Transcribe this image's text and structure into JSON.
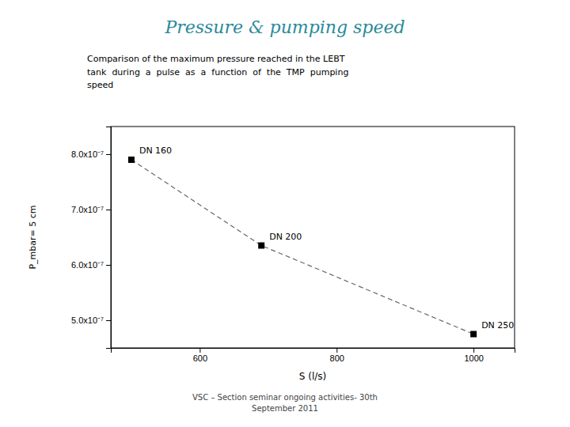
{
  "chart_data": {
    "type": "line",
    "title": "Pressure & pumping speed",
    "subtitle": "Comparison of the maximum pressure reached in the LEBT\ntank  during  a  pulse  as  a  function  of  the  TMP  pumping\nspeed",
    "x": [
      500,
      690,
      1000
    ],
    "values": [
      7.9e-07,
      6.35e-07,
      4.75e-07
    ],
    "annotations": [
      "DN 160",
      "DN 200",
      "DN 250"
    ],
    "color": "#000000",
    "marker": "square",
    "line_style": "dashed",
    "x_label": "S (l/s)",
    "y_label": "P_mbar= 5 cm",
    "xlim": [
      470,
      1060
    ],
    "ylim": [
      4.5e-07,
      8.5e-07
    ],
    "xticks": [
      600,
      800,
      1000
    ],
    "yticks": [
      {
        "value": 5e-07,
        "label": "5.0x10⁻⁷"
      },
      {
        "value": 6e-07,
        "label": "6.0x10⁻⁷"
      },
      {
        "value": 7e-07,
        "label": "7.0x10⁻⁷"
      },
      {
        "value": 8e-07,
        "label": "8.0x10⁻⁷"
      }
    ],
    "grid": false,
    "footer": "VSC – Section seminar ongoing activities- 30th\nSeptember 2011"
  }
}
